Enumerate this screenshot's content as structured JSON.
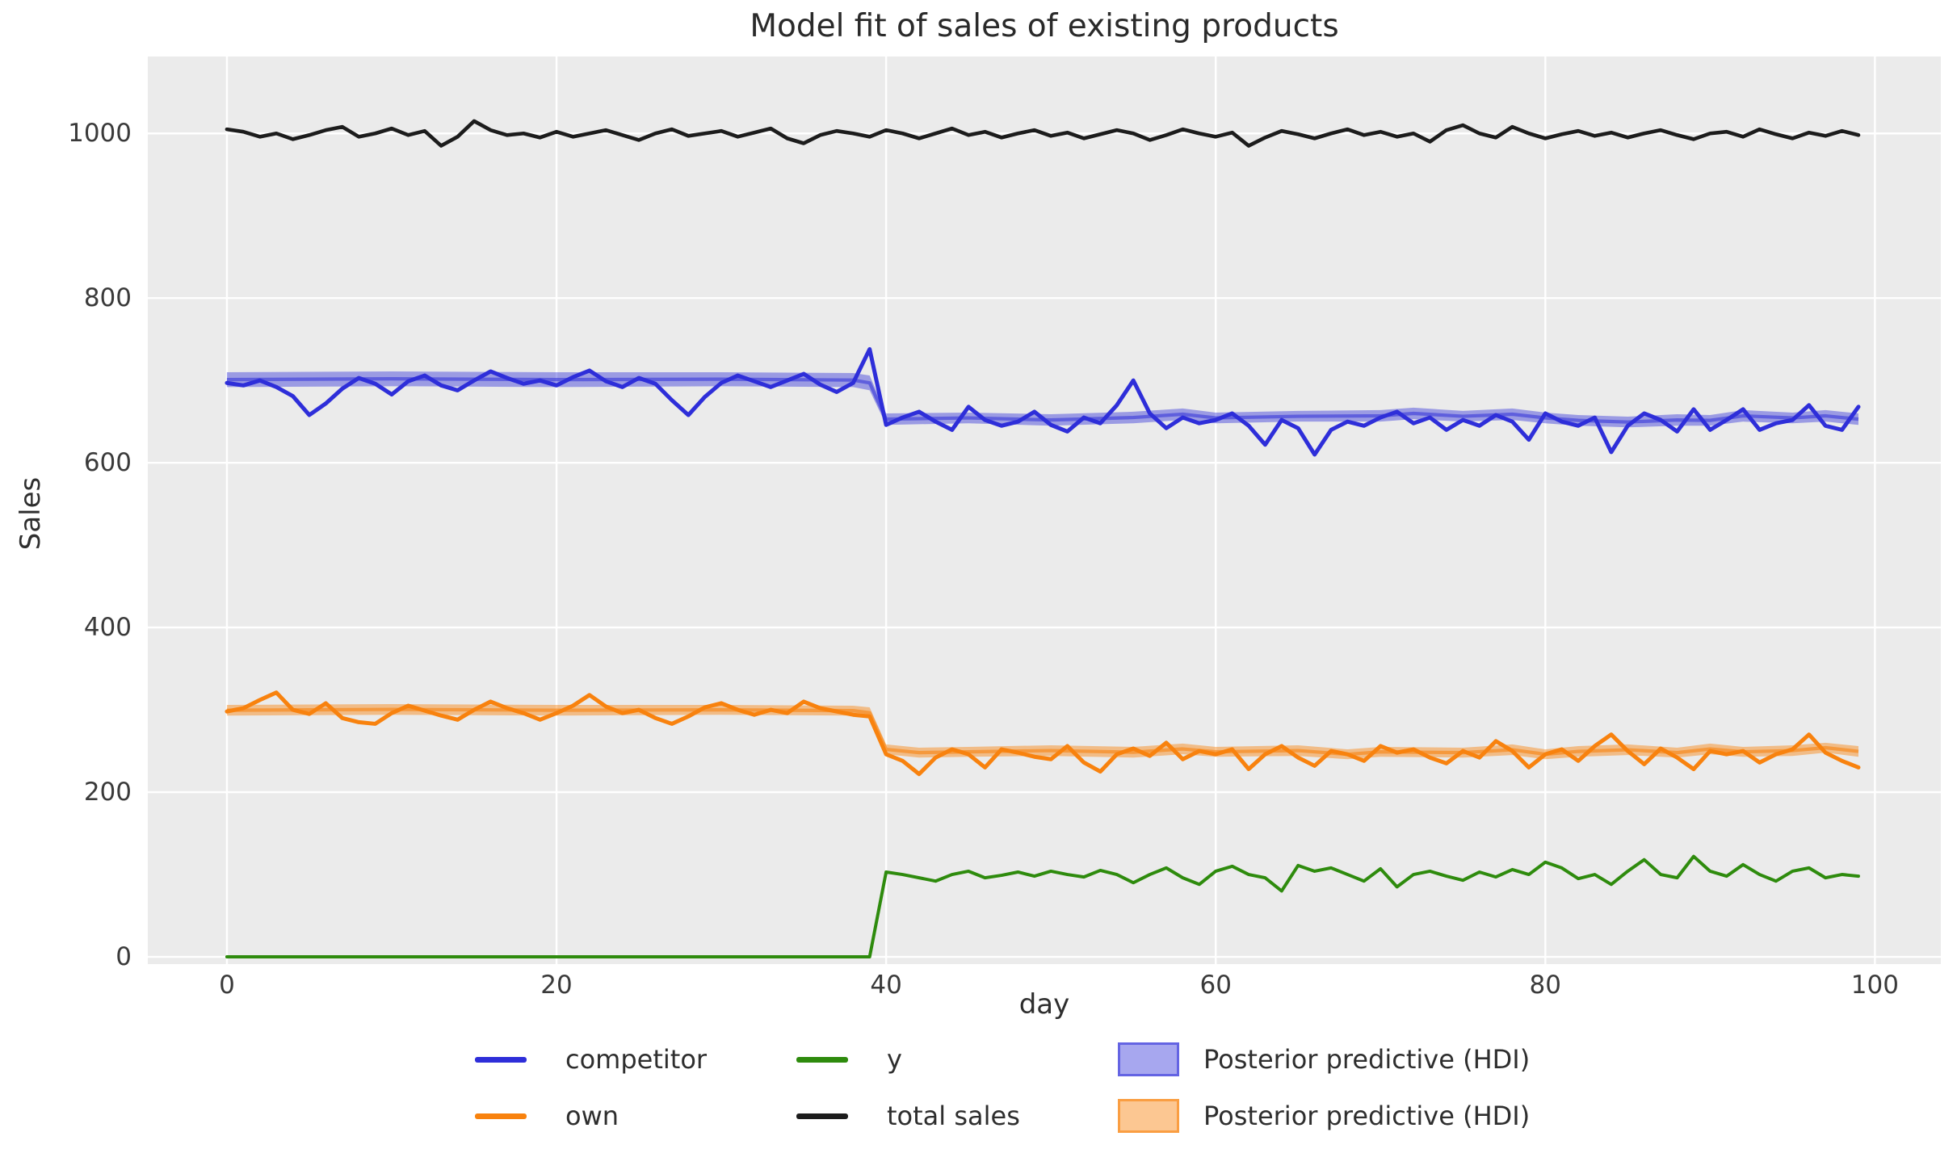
{
  "title": "Model fit of sales of existing products",
  "axes": {
    "xlabel": "day",
    "ylabel": "Sales",
    "x_ticks": [
      0,
      20,
      40,
      60,
      80,
      100
    ],
    "y_ticks": [
      0,
      200,
      400,
      600,
      800,
      1000
    ],
    "xlim": [
      -4.8,
      104.0
    ],
    "ylim": [
      -8.8,
      1093.4
    ],
    "background": "#ebebeb",
    "grid_color": "#ffffff",
    "grid": "on"
  },
  "colors": {
    "competitor": "#2e2ed9",
    "own": "#f8820e",
    "y": "#2e8b0d",
    "total_sales": "#1c1c1c",
    "hdi_blue_fill": "rgba(46,46,217,0.42)",
    "hdi_blue_line": "rgba(46,46,217,0.55)",
    "hdi_orange_fill": "rgba(248,130,14,0.45)",
    "hdi_orange_line": "rgba(248,130,14,0.60)",
    "text": "#3a3a3a"
  },
  "chart_data": {
    "type": "line",
    "x": [
      0,
      1,
      2,
      3,
      4,
      5,
      6,
      7,
      8,
      9,
      10,
      11,
      12,
      13,
      14,
      15,
      16,
      17,
      18,
      19,
      20,
      21,
      22,
      23,
      24,
      25,
      26,
      27,
      28,
      29,
      30,
      31,
      32,
      33,
      34,
      35,
      36,
      37,
      38,
      39,
      40,
      41,
      42,
      43,
      44,
      45,
      46,
      47,
      48,
      49,
      50,
      51,
      52,
      53,
      54,
      55,
      56,
      57,
      58,
      59,
      60,
      61,
      62,
      63,
      64,
      65,
      66,
      67,
      68,
      69,
      70,
      71,
      72,
      73,
      74,
      75,
      76,
      77,
      78,
      79,
      80,
      81,
      82,
      83,
      84,
      85,
      86,
      87,
      88,
      89,
      90,
      91,
      92,
      93,
      94,
      95,
      96,
      97,
      98,
      99
    ],
    "series": [
      {
        "name": "competitor",
        "color_key": "competitor",
        "values": [
          697,
          694,
          700,
          692,
          681,
          658,
          672,
          690,
          703,
          696,
          683,
          699,
          706,
          694,
          688,
          700,
          711,
          703,
          696,
          700,
          694,
          704,
          712,
          699,
          692,
          703,
          696,
          676,
          658,
          680,
          697,
          706,
          699,
          692,
          700,
          708,
          695,
          686,
          697,
          738,
          646,
          655,
          662,
          650,
          640,
          668,
          652,
          645,
          650,
          662,
          646,
          638,
          655,
          648,
          670,
          700,
          660,
          642,
          655,
          648,
          652,
          660,
          645,
          622,
          652,
          642,
          610,
          640,
          650,
          645,
          655,
          662,
          648,
          655,
          640,
          652,
          645,
          658,
          650,
          628,
          660,
          650,
          645,
          655,
          613,
          645,
          660,
          652,
          638,
          665,
          640,
          652,
          665,
          640,
          648,
          652,
          670,
          645,
          640,
          668
        ]
      },
      {
        "name": "own",
        "color_key": "own",
        "values": [
          298,
          302,
          312,
          321,
          300,
          295,
          308,
          290,
          285,
          283,
          296,
          305,
          299,
          293,
          288,
          300,
          310,
          302,
          296,
          288,
          296,
          305,
          318,
          304,
          296,
          300,
          290,
          283,
          292,
          303,
          308,
          300,
          294,
          300,
          296,
          310,
          302,
          298,
          294,
          292,
          246,
          238,
          222,
          242,
          252,
          246,
          230,
          252,
          248,
          243,
          240,
          256,
          236,
          225,
          246,
          253,
          244,
          260,
          240,
          250,
          246,
          252,
          228,
          246,
          256,
          242,
          232,
          250,
          246,
          238,
          256,
          248,
          252,
          242,
          235,
          250,
          242,
          262,
          250,
          230,
          246,
          252,
          238,
          256,
          270,
          250,
          234,
          253,
          242,
          228,
          250,
          246,
          250,
          236,
          246,
          252,
          270,
          248,
          238,
          230
        ]
      },
      {
        "name": "y",
        "color_key": "y",
        "values": [
          0,
          0,
          0,
          0,
          0,
          0,
          0,
          0,
          0,
          0,
          0,
          0,
          0,
          0,
          0,
          0,
          0,
          0,
          0,
          0,
          0,
          0,
          0,
          0,
          0,
          0,
          0,
          0,
          0,
          0,
          0,
          0,
          0,
          0,
          0,
          0,
          0,
          0,
          0,
          0,
          103,
          100,
          96,
          92,
          100,
          104,
          96,
          99,
          103,
          98,
          104,
          100,
          97,
          105,
          100,
          90,
          100,
          108,
          96,
          88,
          104,
          110,
          100,
          96,
          80,
          111,
          104,
          108,
          100,
          92,
          107,
          85,
          100,
          104,
          98,
          93,
          103,
          97,
          106,
          100,
          115,
          108,
          95,
          100,
          88,
          104,
          118,
          100,
          96,
          122,
          104,
          98,
          112,
          100,
          92,
          104,
          108,
          96,
          100,
          98
        ]
      },
      {
        "name": "total sales",
        "color_key": "total_sales",
        "values": [
          1005,
          1002,
          996,
          1000,
          993,
          998,
          1004,
          1008,
          996,
          1000,
          1006,
          998,
          1003,
          985,
          996,
          1015,
          1004,
          998,
          1000,
          995,
          1002,
          996,
          1000,
          1004,
          998,
          992,
          1000,
          1005,
          997,
          1000,
          1003,
          996,
          1001,
          1006,
          994,
          988,
          998,
          1003,
          1000,
          996,
          1004,
          1000,
          994,
          1000,
          1006,
          998,
          1002,
          995,
          1000,
          1004,
          997,
          1001,
          994,
          999,
          1004,
          1000,
          992,
          998,
          1005,
          1000,
          996,
          1001,
          985,
          995,
          1003,
          999,
          994,
          1000,
          1005,
          998,
          1002,
          996,
          1000,
          990,
          1004,
          1010,
          1000,
          995,
          1008,
          1000,
          994,
          999,
          1003,
          997,
          1001,
          995,
          1000,
          1004,
          998,
          993,
          1000,
          1002,
          996,
          1005,
          999,
          994,
          1001,
          997,
          1003,
          998
        ]
      }
    ],
    "bands": [
      {
        "name": "Posterior predictive (HDI)",
        "fill_key": "hdi_blue_fill",
        "line_key": "hdi_blue_line",
        "points": [
          [
            0,
            692,
            710
          ],
          [
            10,
            693,
            711
          ],
          [
            20,
            692,
            710
          ],
          [
            30,
            693,
            710
          ],
          [
            38,
            692,
            709
          ],
          [
            39,
            688,
            706
          ],
          [
            40,
            646,
            660
          ],
          [
            45,
            648,
            661
          ],
          [
            50,
            645,
            659
          ],
          [
            55,
            648,
            662
          ],
          [
            58,
            652,
            666
          ],
          [
            60,
            648,
            661
          ],
          [
            65,
            650,
            663
          ],
          [
            70,
            650,
            664
          ],
          [
            72,
            653,
            667
          ],
          [
            75,
            650,
            663
          ],
          [
            78,
            652,
            666
          ],
          [
            80,
            648,
            661
          ],
          [
            82,
            645,
            658
          ],
          [
            85,
            643,
            656
          ],
          [
            88,
            645,
            659
          ],
          [
            90,
            645,
            658
          ],
          [
            92,
            650,
            664
          ],
          [
            95,
            648,
            661
          ],
          [
            97,
            650,
            664
          ],
          [
            99,
            646,
            660
          ]
        ]
      },
      {
        "name": "Posterior predictive (HDI)",
        "fill_key": "hdi_orange_fill",
        "line_key": "hdi_orange_line",
        "points": [
          [
            0,
            293,
            306
          ],
          [
            10,
            294,
            307
          ],
          [
            20,
            293,
            306
          ],
          [
            30,
            294,
            306
          ],
          [
            38,
            293,
            305
          ],
          [
            39,
            290,
            303
          ],
          [
            40,
            246,
            258
          ],
          [
            42,
            242,
            254
          ],
          [
            45,
            243,
            255
          ],
          [
            50,
            244,
            257
          ],
          [
            55,
            242,
            255
          ],
          [
            58,
            246,
            259
          ],
          [
            60,
            243,
            255
          ],
          [
            65,
            244,
            257
          ],
          [
            68,
            240,
            252
          ],
          [
            70,
            243,
            255
          ],
          [
            75,
            242,
            254
          ],
          [
            78,
            245,
            258
          ],
          [
            80,
            240,
            252
          ],
          [
            82,
            243,
            256
          ],
          [
            85,
            245,
            258
          ],
          [
            88,
            242,
            254
          ],
          [
            90,
            246,
            259
          ],
          [
            92,
            243,
            255
          ],
          [
            95,
            244,
            257
          ],
          [
            97,
            248,
            260
          ],
          [
            99,
            243,
            256
          ]
        ]
      }
    ]
  },
  "legend": {
    "items": [
      {
        "label": "competitor",
        "type": "line",
        "color_key": "competitor"
      },
      {
        "label": "own",
        "type": "line",
        "color_key": "own"
      },
      {
        "label": "y",
        "type": "line",
        "color_key": "y"
      },
      {
        "label": "total sales",
        "type": "line",
        "color_key": "total_sales"
      },
      {
        "label": "Posterior predictive (HDI)",
        "type": "patch",
        "fill_key": "hdi_blue_fill",
        "line_key": "hdi_blue_line"
      },
      {
        "label": "Posterior predictive (HDI)",
        "type": "patch",
        "fill_key": "hdi_orange_fill",
        "line_key": "hdi_orange_line"
      }
    ]
  }
}
